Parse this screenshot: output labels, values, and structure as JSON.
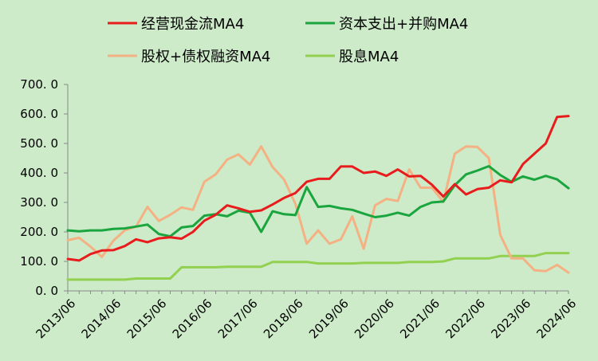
{
  "chart_data": {
    "type": "line",
    "legend_position": "top",
    "grid": false,
    "ylim": [
      0,
      700
    ],
    "yticks": [
      "0. 0",
      "100. 0",
      "200. 0",
      "300. 0",
      "400. 0",
      "500. 0",
      "600. 0",
      "700. 0"
    ],
    "ytick_values": [
      0,
      100,
      200,
      300,
      400,
      500,
      600,
      700
    ],
    "xticks": [
      "2013/06",
      "2014/06",
      "2015/06",
      "2016/06",
      "2017/06",
      "2018/06",
      "2019/06",
      "2020/06",
      "2021/06",
      "2022/06",
      "2023/06",
      "2024/06"
    ],
    "x": [
      "2013/06",
      "2013/09",
      "2013/12",
      "2014/03",
      "2014/06",
      "2014/09",
      "2014/12",
      "2015/03",
      "2015/06",
      "2015/09",
      "2015/12",
      "2016/03",
      "2016/06",
      "2016/09",
      "2016/12",
      "2017/03",
      "2017/06",
      "2017/09",
      "2017/12",
      "2018/03",
      "2018/06",
      "2018/09",
      "2018/12",
      "2019/03",
      "2019/06",
      "2019/09",
      "2019/12",
      "2020/03",
      "2020/06",
      "2020/09",
      "2020/12",
      "2021/03",
      "2021/06",
      "2021/09",
      "2021/12",
      "2022/03",
      "2022/06",
      "2022/09",
      "2022/12",
      "2023/03",
      "2023/06",
      "2023/09",
      "2023/12",
      "2024/03",
      "2024/06"
    ],
    "series": [
      {
        "name": "经营现金流MA4",
        "color": "#e81c1c",
        "values": [
          108,
          103,
          125,
          137,
          138,
          152,
          175,
          165,
          178,
          182,
          177,
          200,
          238,
          258,
          290,
          280,
          268,
          273,
          293,
          315,
          332,
          370,
          380,
          380,
          422,
          422,
          400,
          405,
          390,
          412,
          388,
          390,
          360,
          320,
          362,
          327,
          345,
          350,
          375,
          368,
          430,
          465,
          500,
          590,
          593
        ]
      },
      {
        "name": "资本支出+并购MA4",
        "color": "#1aa53e",
        "values": [
          205,
          202,
          205,
          205,
          210,
          212,
          218,
          225,
          193,
          185,
          215,
          220,
          255,
          260,
          253,
          272,
          265,
          200,
          270,
          260,
          257,
          352,
          285,
          288,
          280,
          275,
          262,
          250,
          255,
          265,
          255,
          285,
          300,
          303,
          358,
          395,
          408,
          423,
          393,
          370,
          388,
          377,
          390,
          378,
          348
        ]
      },
      {
        "name": "股权+债权融资MA4",
        "color": "#f4b183",
        "values": [
          172,
          180,
          150,
          115,
          170,
          205,
          218,
          285,
          237,
          258,
          283,
          275,
          370,
          395,
          445,
          463,
          428,
          490,
          420,
          378,
          295,
          160,
          205,
          160,
          175,
          253,
          143,
          290,
          312,
          305,
          412,
          350,
          350,
          302,
          465,
          490,
          488,
          450,
          190,
          110,
          110,
          70,
          67,
          88,
          62
        ]
      },
      {
        "name": "股息MA4",
        "color": "#92d050",
        "values": [
          38,
          38,
          38,
          38,
          38,
          38,
          42,
          42,
          42,
          42,
          80,
          80,
          80,
          80,
          82,
          82,
          82,
          82,
          98,
          98,
          98,
          98,
          93,
          93,
          93,
          93,
          95,
          95,
          95,
          95,
          98,
          98,
          98,
          100,
          110,
          110,
          110,
          110,
          118,
          118,
          118,
          118,
          128,
          128,
          128
        ]
      }
    ]
  }
}
